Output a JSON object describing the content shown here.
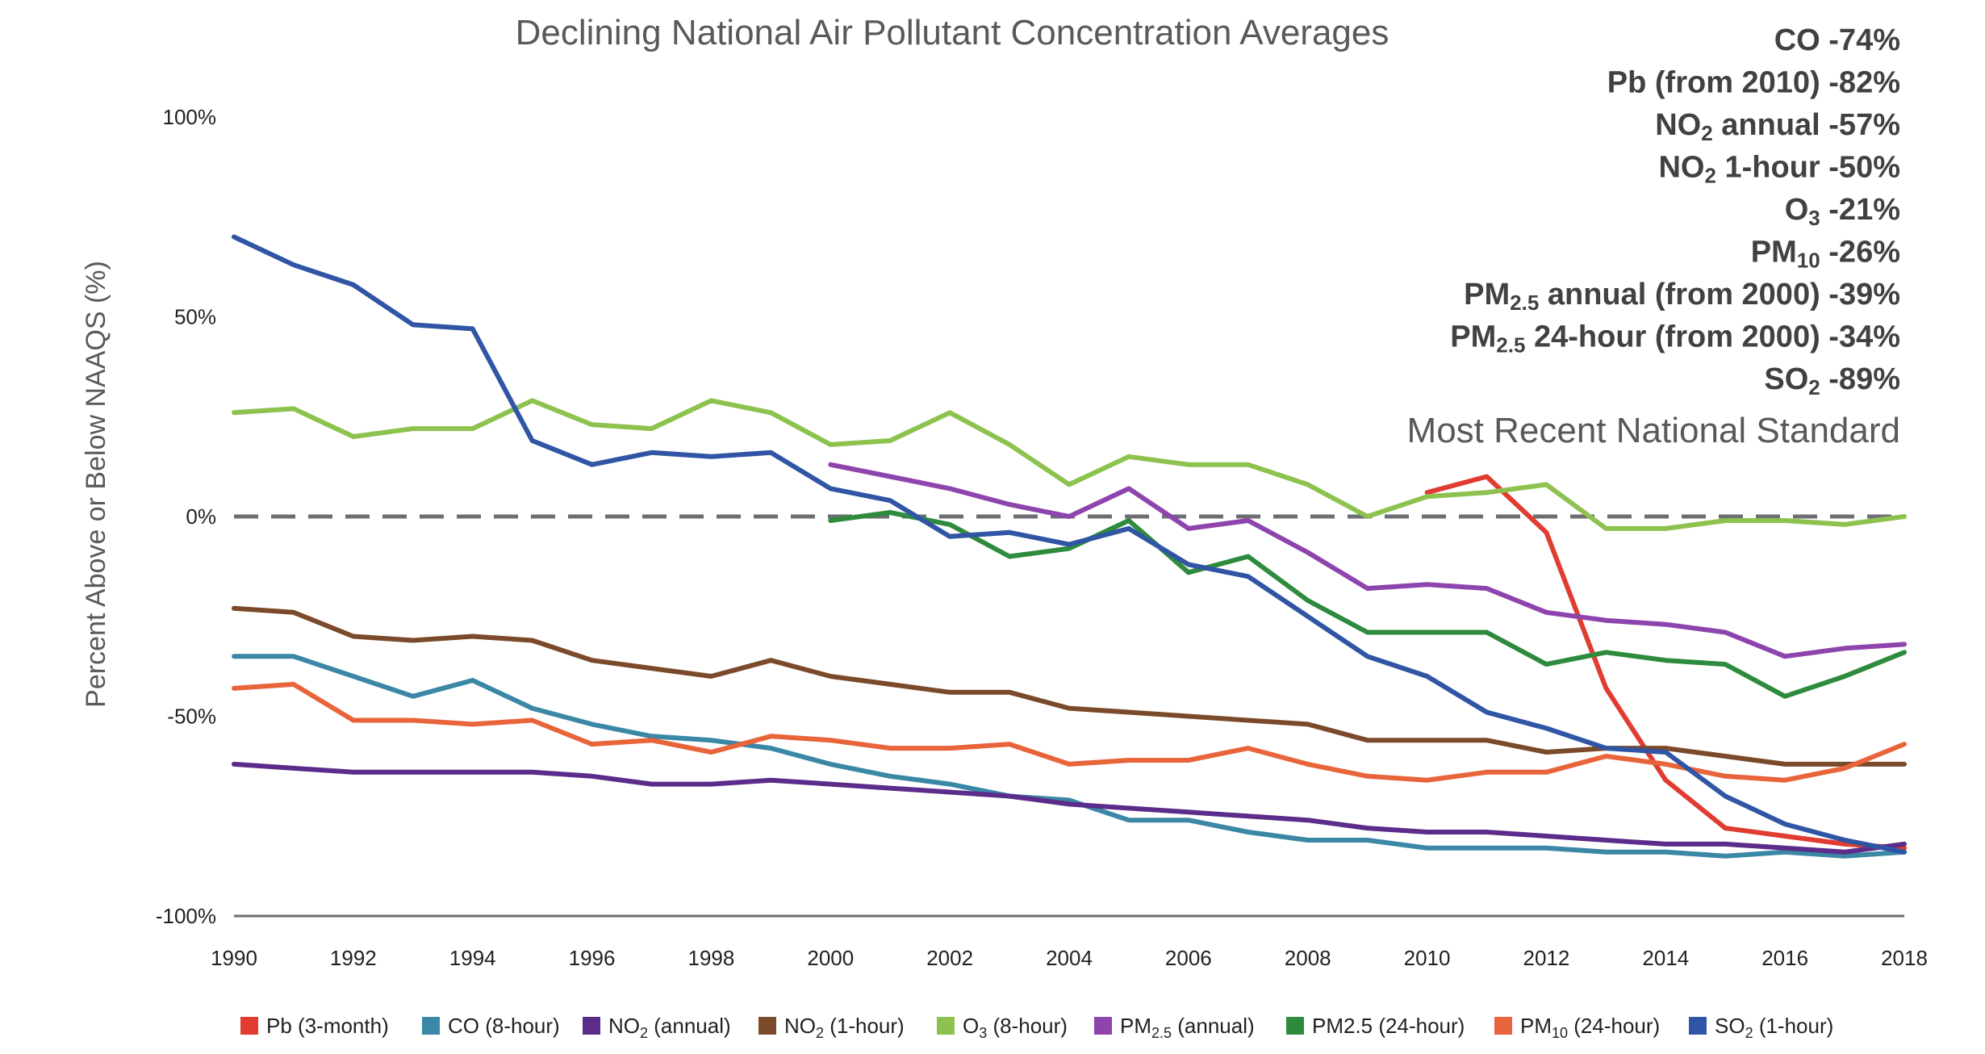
{
  "chart_data": {
    "type": "line",
    "title": "Declining National Air Pollutant Concentration Averages",
    "xlabel": "",
    "ylabel": "Percent Above or Below NAAQS (%)",
    "xlim": [
      1990,
      2018
    ],
    "ylim": [
      -100,
      100
    ],
    "x_ticks": [
      "1990",
      "1992",
      "1994",
      "1996",
      "1998",
      "2000",
      "2002",
      "2004",
      "2006",
      "2008",
      "2010",
      "2012",
      "2014",
      "2016",
      "2018"
    ],
    "y_ticks": [
      "100%",
      "50%",
      "0%",
      "-50%",
      "-100%"
    ],
    "grid": false,
    "legend_position": "bottom",
    "reference_line": {
      "value": 0,
      "style": "dashed",
      "color": "#6d6e71",
      "label": "Most Recent National Standard"
    },
    "series": [
      {
        "key": "pb",
        "name_main": "Pb",
        "name_sub": "",
        "name_tail": " (3-month)",
        "color": "#e03c31",
        "start": 2010,
        "values": [
          6,
          10,
          -4,
          -43,
          -66,
          -78,
          -80,
          -82,
          -83
        ]
      },
      {
        "key": "co",
        "name_main": "CO",
        "name_sub": "",
        "name_tail": " (8-hour)",
        "color": "#3a87a6",
        "start": 1990,
        "values": [
          -35,
          -35,
          -40,
          -45,
          -41,
          -48,
          -52,
          -55,
          -56,
          -58,
          -62,
          -65,
          -67,
          -70,
          -71,
          -76,
          -76,
          -79,
          -81,
          -81,
          -83,
          -83,
          -83,
          -84,
          -84,
          -85,
          -84,
          -85,
          -84
        ]
      },
      {
        "key": "no2a",
        "name_main": "NO",
        "name_sub": "2",
        "name_tail": " (annual)",
        "color": "#5b2c8a",
        "start": 1990,
        "values": [
          -62,
          -63,
          -64,
          -64,
          -64,
          -64,
          -65,
          -67,
          -67,
          -66,
          -67,
          -68,
          -69,
          -70,
          -72,
          -73,
          -74,
          -75,
          -76,
          -78,
          -79,
          -79,
          -80,
          -81,
          -82,
          -82,
          -83,
          -84,
          -82
        ]
      },
      {
        "key": "no21",
        "name_main": "NO",
        "name_sub": "2",
        "name_tail": " (1-hour)",
        "color": "#7a4a2a",
        "start": 1990,
        "values": [
          -23,
          -24,
          -30,
          -31,
          -30,
          -31,
          -36,
          -38,
          -40,
          -36,
          -40,
          -42,
          -44,
          -44,
          -48,
          -49,
          -50,
          -51,
          -52,
          -56,
          -56,
          -56,
          -59,
          -58,
          -58,
          -60,
          -62,
          -62,
          -62
        ]
      },
      {
        "key": "o3",
        "name_main": "O",
        "name_sub": "3",
        "name_tail": " (8-hour)",
        "color": "#8dc24f",
        "start": 1990,
        "values": [
          26,
          27,
          20,
          22,
          22,
          29,
          23,
          22,
          29,
          26,
          18,
          19,
          26,
          18,
          8,
          15,
          13,
          13,
          8,
          0,
          5,
          6,
          8,
          -3,
          -3,
          -1,
          -1,
          -2,
          0
        ]
      },
      {
        "key": "pm25a",
        "name_main": "PM",
        "name_sub": "2.5",
        "name_tail": " (annual)",
        "color": "#8e44ad",
        "start": 2000,
        "values": [
          13,
          10,
          7,
          3,
          0,
          7,
          -3,
          -1,
          -9,
          -18,
          -17,
          -18,
          -24,
          -26,
          -27,
          -29,
          -35,
          -33,
          -32
        ]
      },
      {
        "key": "pm2524",
        "name_main": "PM2.5",
        "name_sub": "",
        "name_tail": " (24-hour)",
        "color": "#2e8b3e",
        "start": 2000,
        "values": [
          -1,
          1,
          -2,
          -10,
          -8,
          -1,
          -14,
          -10,
          -21,
          -29,
          -29,
          -29,
          -37,
          -34,
          -36,
          -37,
          -45,
          -40,
          -34
        ]
      },
      {
        "key": "pm10",
        "name_main": "PM",
        "name_sub": "10",
        "name_tail": " (24-hour)",
        "color": "#e8643a",
        "start": 1990,
        "values": [
          -43,
          -42,
          -51,
          -51,
          -52,
          -51,
          -57,
          -56,
          -59,
          -55,
          -56,
          -58,
          -58,
          -57,
          -62,
          -61,
          -61,
          -58,
          -62,
          -65,
          -66,
          -64,
          -64,
          -60,
          -62,
          -65,
          -66,
          -63,
          -57
        ]
      },
      {
        "key": "so2",
        "name_main": "SO",
        "name_sub": "2",
        "name_tail": " (1-hour)",
        "color": "#2f55a4",
        "start": 1990,
        "values": [
          70,
          63,
          58,
          48,
          47,
          19,
          13,
          16,
          15,
          16,
          7,
          4,
          -5,
          -4,
          -7,
          -3,
          -12,
          -15,
          -25,
          -35,
          -40,
          -49,
          -53,
          -58,
          -59,
          -70,
          -77,
          -81,
          -84
        ]
      }
    ],
    "annotations": [
      {
        "main": "CO",
        "sub": "",
        "tail": " -74%"
      },
      {
        "main": "Pb (from 2010) -82%",
        "sub": "",
        "tail": ""
      },
      {
        "main": "NO",
        "sub": "2",
        "tail": " annual -57%"
      },
      {
        "main": "NO",
        "sub": "2",
        "tail": " 1-hour -50%"
      },
      {
        "main": "O",
        "sub": "3",
        "tail": " -21%"
      },
      {
        "main": "PM",
        "sub": "10",
        "tail": " -26%"
      },
      {
        "main": "PM",
        "sub": "2.5",
        "tail": " annual (from 2000) -39%"
      },
      {
        "main": "PM",
        "sub": "2.5",
        "tail": " 24-hour (from 2000) -34%"
      },
      {
        "main": "SO",
        "sub": "2",
        "tail": " -89%"
      }
    ]
  }
}
